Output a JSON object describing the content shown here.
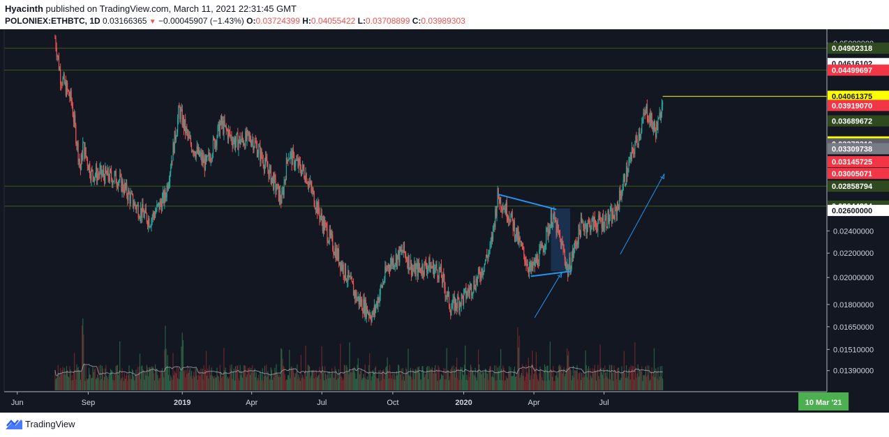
{
  "header": {
    "author": "Hyacinth",
    "published_text": "published on TradingView.com, March 11, 2021 22:31:45 GMT",
    "symbol": "POLONIEX:ETHBTC, 1D",
    "last": "0.03166365",
    "change": "−0.00045907 (−1.43%)",
    "o_label": "O:",
    "o_value": "0.03724399",
    "h_label": "H:",
    "h_value": "0.04055422",
    "l_label": "L:",
    "l_value": "0.03708899",
    "c_label": "C:",
    "c_value": "0.03989303"
  },
  "footer": {
    "brand": "TradingView"
  },
  "colors": {
    "background": "#131722",
    "up": "#26a69a",
    "down": "#ef5350",
    "hline": "#2e4a1e",
    "trendline": "#2196f3",
    "highlight_box": "#1e3a5f",
    "volume_ma": "#b2b5be"
  },
  "chart_data": {
    "type": "candlestick",
    "symbol": "POLONIEX:ETHBTC",
    "interval": "1D",
    "y_scale": "log",
    "ylim": [
      0.0128,
      0.0525
    ],
    "x_range": [
      "2018-05-15",
      "2021-04-16"
    ],
    "x_tick_labels": [
      {
        "date": "2018-06-01",
        "label": "Jun",
        "bold": false
      },
      {
        "date": "2018-09-01",
        "label": "Sep",
        "bold": false
      },
      {
        "date": "2019-01-01",
        "label": "2019",
        "bold": true
      },
      {
        "date": "2019-04-01",
        "label": "Apr",
        "bold": false
      },
      {
        "date": "2019-07-01",
        "label": "Jul",
        "bold": false
      },
      {
        "date": "2019-10-01",
        "label": "Oct",
        "bold": false
      },
      {
        "date": "2020-01-01",
        "label": "2020",
        "bold": true
      },
      {
        "date": "2020-04-01",
        "label": "Apr",
        "bold": false
      },
      {
        "date": "2020-07-01",
        "label": "Jul",
        "bold": false
      }
    ],
    "current_date_label": "10 Mar '21",
    "current_date": "2021-03-10",
    "y_tick_labels": [
      "0.05000000",
      "0.02400000",
      "0.02200000",
      "0.02000000",
      "0.01800000",
      "0.01650000",
      "0.01510000",
      "0.01390000"
    ],
    "price_scale_tags": [
      {
        "value": "0.04902318",
        "bg": "#2e4a1e",
        "fg": "#ffffff",
        "line": true
      },
      {
        "value": "0.04616102",
        "bg": "#ffffff",
        "fg": "#131722",
        "line": false
      },
      {
        "value": "0.04499697",
        "bg": "#f23645",
        "fg": "#ffffff",
        "line": true
      },
      {
        "value": "0.04061375",
        "bg": "#ffff00",
        "fg": "#131722",
        "line": false
      },
      {
        "value": "0.03919070",
        "bg": "#f23645",
        "fg": "#ffffff",
        "line": false
      },
      {
        "value": "0.03689672",
        "bg": "#2e4a1e",
        "fg": "#ffffff",
        "line": false
      },
      {
        "value": "0.03398155",
        "bg": "#ffff00",
        "fg": "#131722",
        "line": false
      },
      {
        "value": "0.03372319",
        "bg": "#5d606b",
        "fg": "#ffffff",
        "line": false
      },
      {
        "value": "0.03309738",
        "bg": "#787b86",
        "fg": "#ffffff",
        "line": false
      },
      {
        "value": "0.03145725",
        "bg": "#f23645",
        "fg": "#ffffff",
        "line": false
      },
      {
        "value": "0.03005071",
        "bg": "#f23645",
        "fg": "#ffffff",
        "line": false
      },
      {
        "value": "0.02858794",
        "bg": "#2e4a1e",
        "fg": "#ffffff",
        "line": true
      },
      {
        "value": "0.02644204",
        "bg": "#2e4a1e",
        "fg": "#ffffff",
        "line": true
      },
      {
        "value": "0.02600000",
        "bg": "#ffffff",
        "fg": "#131722",
        "line": false
      }
    ],
    "horizontal_levels": [
      0.04902318,
      0.04499697,
      0.02858794,
      0.02644204
    ],
    "price_path": [
      {
        "date": "2018-07-20",
        "price": 0.051
      },
      {
        "date": "2018-07-27",
        "price": 0.044
      },
      {
        "date": "2018-08-10",
        "price": 0.04
      },
      {
        "date": "2018-08-22",
        "price": 0.0305
      },
      {
        "date": "2018-08-25",
        "price": 0.0335
      },
      {
        "date": "2018-09-05",
        "price": 0.03
      },
      {
        "date": "2018-09-15",
        "price": 0.03
      },
      {
        "date": "2018-10-10",
        "price": 0.0294
      },
      {
        "date": "2018-11-01",
        "price": 0.0265
      },
      {
        "date": "2018-11-20",
        "price": 0.025
      },
      {
        "date": "2018-12-10",
        "price": 0.0275
      },
      {
        "date": "2018-12-20",
        "price": 0.033
      },
      {
        "date": "2018-12-28",
        "price": 0.0385
      },
      {
        "date": "2019-01-10",
        "price": 0.034
      },
      {
        "date": "2019-02-01",
        "price": 0.031
      },
      {
        "date": "2019-02-20",
        "price": 0.0365
      },
      {
        "date": "2019-03-10",
        "price": 0.034
      },
      {
        "date": "2019-04-01",
        "price": 0.0345
      },
      {
        "date": "2019-04-20",
        "price": 0.031
      },
      {
        "date": "2019-05-10",
        "price": 0.027
      },
      {
        "date": "2019-05-18",
        "price": 0.0325
      },
      {
        "date": "2019-06-10",
        "price": 0.03
      },
      {
        "date": "2019-07-01",
        "price": 0.025
      },
      {
        "date": "2019-07-20",
        "price": 0.022
      },
      {
        "date": "2019-08-15",
        "price": 0.0185
      },
      {
        "date": "2019-09-05",
        "price": 0.0172
      },
      {
        "date": "2019-09-25",
        "price": 0.021
      },
      {
        "date": "2019-10-15",
        "price": 0.0222
      },
      {
        "date": "2019-10-28",
        "price": 0.0205
      },
      {
        "date": "2019-11-15",
        "price": 0.021
      },
      {
        "date": "2019-12-01",
        "price": 0.0205
      },
      {
        "date": "2019-12-15",
        "price": 0.0178
      },
      {
        "date": "2020-01-01",
        "price": 0.0185
      },
      {
        "date": "2020-01-20",
        "price": 0.02
      },
      {
        "date": "2020-02-05",
        "price": 0.0225
      },
      {
        "date": "2020-02-14",
        "price": 0.0275
      },
      {
        "date": "2020-03-01",
        "price": 0.0255
      },
      {
        "date": "2020-03-15",
        "price": 0.0225
      },
      {
        "date": "2020-03-28",
        "price": 0.0205
      },
      {
        "date": "2020-04-10",
        "price": 0.022
      },
      {
        "date": "2020-04-25",
        "price": 0.0255
      },
      {
        "date": "2020-05-10",
        "price": 0.022
      },
      {
        "date": "2020-05-15",
        "price": 0.0205
      },
      {
        "date": "2020-06-01",
        "price": 0.0245
      },
      {
        "date": "2020-06-25",
        "price": 0.0248
      },
      {
        "date": "2020-07-15",
        "price": 0.0255
      },
      {
        "date": "2020-07-28",
        "price": 0.0295
      },
      {
        "date": "2020-08-10",
        "price": 0.0335
      },
      {
        "date": "2020-08-25",
        "price": 0.0385
      },
      {
        "date": "2020-09-05",
        "price": 0.0355
      },
      {
        "date": "2020-09-10",
        "price": 0.0365
      },
      {
        "date": "2020-09-15",
        "price": 0.041
      }
    ],
    "trendlines": [
      {
        "from": {
          "date": "2020-02-14",
          "price": 0.0277
        },
        "to": {
          "date": "2020-04-30",
          "price": 0.0261
        },
        "arrow": false
      },
      {
        "from": {
          "date": "2020-03-28",
          "price": 0.0201
        },
        "to": {
          "date": "2020-05-20",
          "price": 0.0205
        },
        "arrow": false
      },
      {
        "from": {
          "date": "2020-04-02",
          "price": 0.0171
        },
        "to": {
          "date": "2020-05-07",
          "price": 0.0204
        },
        "arrow": true
      },
      {
        "from": {
          "date": "2020-07-22",
          "price": 0.0219
        },
        "to": {
          "date": "2020-09-17",
          "price": 0.03
        },
        "arrow": true
      }
    ],
    "highlight_box": {
      "from": "2020-04-23",
      "to": "2020-05-18",
      "price_top": 0.0262,
      "price_bottom": 0.0205
    },
    "volume_spikes": [
      {
        "date": "2018-08-25",
        "level": 0.95
      },
      {
        "date": "2018-12-10",
        "level": 0.85
      },
      {
        "date": "2019-01-01",
        "level": 0.8
      },
      {
        "date": "2019-05-10",
        "level": 0.6
      },
      {
        "date": "2020-03-12",
        "level": 0.85
      },
      {
        "date": "2020-05-15",
        "level": 0.6
      }
    ]
  }
}
